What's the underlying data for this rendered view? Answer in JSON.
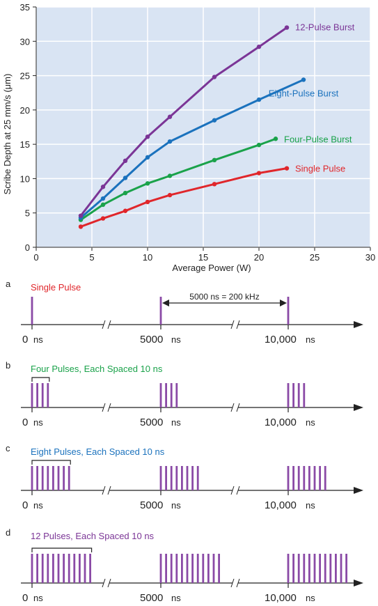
{
  "colors": {
    "plot_background": "#d9e4f3",
    "grid": "#ffffff",
    "axis": "#222222",
    "single": "#e0262b",
    "four": "#1aa24a",
    "eight": "#1b72bd",
    "twelve": "#7b3596",
    "pulse": "#8a4aa6"
  },
  "chart_data": {
    "type": "line",
    "xlabel": "Average Power (W)",
    "ylabel": "Scribe Depth at 25 mm/s (μm)",
    "xlim": [
      0,
      30
    ],
    "ylim": [
      0,
      35
    ],
    "x_ticks": [
      0,
      5,
      10,
      15,
      20,
      25,
      30
    ],
    "y_ticks": [
      0,
      5,
      10,
      15,
      20,
      25,
      30,
      35
    ],
    "grid": true,
    "series": [
      {
        "name": "Single Pulse",
        "color": "#e0262b",
        "points": [
          [
            4,
            3.0
          ],
          [
            6,
            4.2
          ],
          [
            8,
            5.3
          ],
          [
            10,
            6.6
          ],
          [
            12,
            7.6
          ],
          [
            16,
            9.2
          ],
          [
            20,
            10.8
          ],
          [
            22.5,
            11.5
          ]
        ]
      },
      {
        "name": "Four-Pulse Burst",
        "color": "#1aa24a",
        "points": [
          [
            4,
            4.0
          ],
          [
            6,
            6.2
          ],
          [
            8,
            7.9
          ],
          [
            10,
            9.3
          ],
          [
            12,
            10.4
          ],
          [
            16,
            12.7
          ],
          [
            20,
            14.9
          ],
          [
            21.5,
            15.8
          ]
        ]
      },
      {
        "name": "Eight-Pulse Burst",
        "color": "#1b72bd",
        "points": [
          [
            4,
            4.3
          ],
          [
            6,
            7.1
          ],
          [
            8,
            10.1
          ],
          [
            10,
            13.1
          ],
          [
            12,
            15.4
          ],
          [
            16,
            18.5
          ],
          [
            20,
            21.5
          ],
          [
            24,
            24.4
          ]
        ]
      },
      {
        "name": "12-Pulse Burst",
        "color": "#7b3596",
        "points": [
          [
            4,
            4.6
          ],
          [
            6,
            8.8
          ],
          [
            8,
            12.6
          ],
          [
            10,
            16.1
          ],
          [
            12,
            19.0
          ],
          [
            16,
            24.8
          ],
          [
            20,
            29.2
          ],
          [
            22.5,
            32.0
          ]
        ]
      }
    ]
  },
  "timelines": [
    {
      "letter": "a",
      "label": "Single Pulse",
      "color": "#e0262b",
      "pulses": 1,
      "interval_label": "5000 ns = 200 kHz",
      "ticks": [
        "0",
        "5000",
        "10,000"
      ],
      "unit": "ns"
    },
    {
      "letter": "b",
      "label": "Four Pulses, Each Spaced 10 ns",
      "color": "#1aa24a",
      "pulses": 4,
      "ticks": [
        "0",
        "5000",
        "10,000"
      ],
      "unit": "ns"
    },
    {
      "letter": "c",
      "label": "Eight Pulses, Each Spaced 10 ns",
      "color": "#1b72bd",
      "pulses": 8,
      "ticks": [
        "0",
        "5000",
        "10,000"
      ],
      "unit": "ns"
    },
    {
      "letter": "d",
      "label": "12 Pulses, Each Spaced 10 ns",
      "color": "#7b3596",
      "pulses": 12,
      "ticks": [
        "0",
        "5000",
        "10,000"
      ],
      "unit": "ns"
    }
  ]
}
